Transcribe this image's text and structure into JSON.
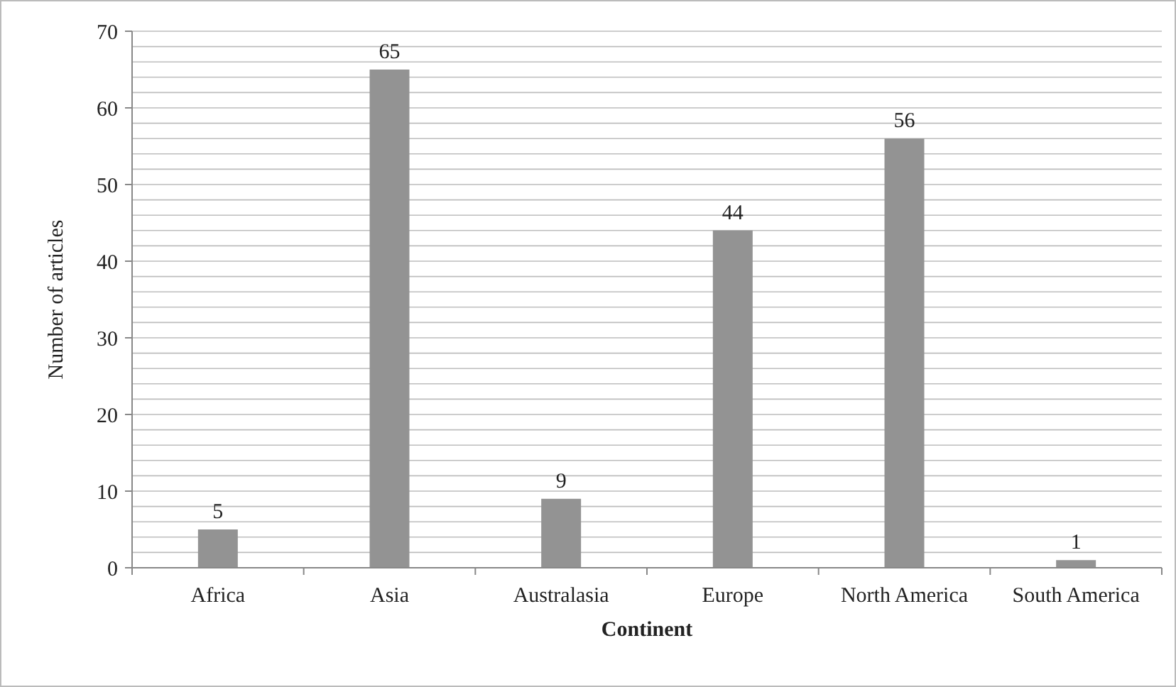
{
  "chart_data": {
    "type": "bar",
    "xlabel": "Continent",
    "ylabel": "Number of articles",
    "categories": [
      "Africa",
      "Asia",
      "Australasia",
      "Europe",
      "North America",
      "South America"
    ],
    "values": [
      5,
      65,
      9,
      44,
      56,
      1
    ],
    "color": "#939393",
    "data_labels": true,
    "grid": "y",
    "ylim": [
      0,
      70
    ],
    "yticks": [
      0,
      {
        "value": 2,
        "label": null
      },
      {
        "value": 4,
        "label": null
      },
      {
        "value": 6,
        "label": null
      },
      {
        "value": 8,
        "label": null
      },
      10,
      {
        "value": 12,
        "label": null
      },
      {
        "value": 14,
        "label": null
      },
      {
        "value": 16,
        "label": null
      },
      {
        "value": 18,
        "label": null
      },
      20,
      {
        "value": 22,
        "label": null
      },
      {
        "value": 24,
        "label": null
      },
      {
        "value": 26,
        "label": null
      },
      {
        "value": 28,
        "label": null
      },
      30,
      {
        "value": 32,
        "label": null
      },
      {
        "value": 34,
        "label": null
      },
      {
        "value": 36,
        "label": null
      },
      {
        "value": 38,
        "label": null
      },
      40,
      {
        "value": 42,
        "label": null
      },
      {
        "value": 44,
        "label": null
      },
      {
        "value": 46,
        "label": null
      },
      {
        "value": 48,
        "label": null
      },
      50,
      {
        "value": 52,
        "label": null
      },
      {
        "value": 54,
        "label": null
      },
      {
        "value": 56,
        "label": null
      },
      {
        "value": 58,
        "label": null
      },
      60,
      {
        "value": 62,
        "label": null
      },
      {
        "value": 64,
        "label": null
      },
      {
        "value": 66,
        "label": null
      },
      {
        "value": 68,
        "label": null
      },
      70
    ]
  }
}
